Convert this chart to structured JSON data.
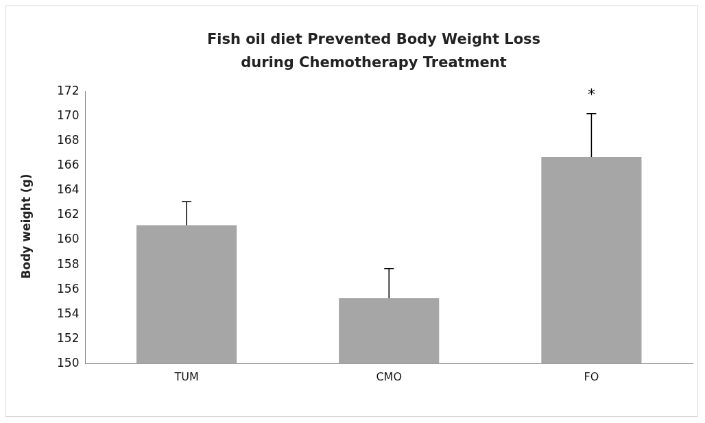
{
  "chart_data": {
    "type": "bar",
    "title": "Fish oil diet Prevented Body Weight Loss during Chemotherapy Treatment",
    "ylabel": "Body weight (g)",
    "categories": [
      "TUM",
      "CMO",
      "FO"
    ],
    "values": [
      161.2,
      155.3,
      166.7
    ],
    "color": "#a6a6a6",
    "errors": [
      [
        161.2,
        163.1
      ],
      [
        155.3,
        157.7
      ],
      [
        166.7,
        170.2
      ]
    ],
    "ylim": [
      150,
      172
    ],
    "yticks": [
      150,
      152,
      154,
      156,
      158,
      160,
      162,
      164,
      166,
      168,
      170,
      172
    ],
    "annotations": [
      "*"
    ],
    "grid": false,
    "legend": false
  }
}
